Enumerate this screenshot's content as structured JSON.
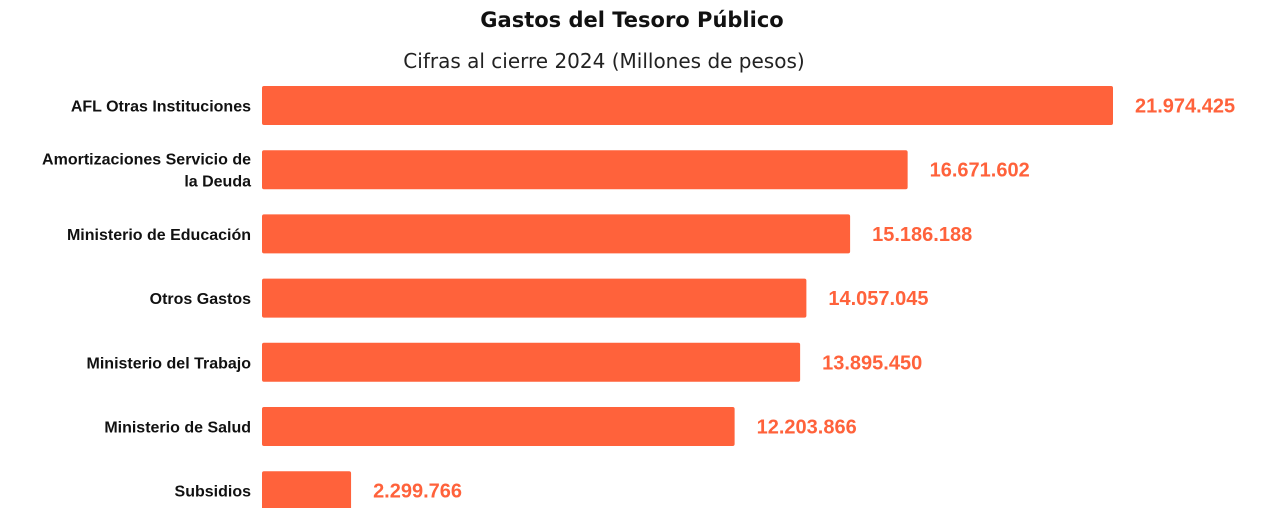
{
  "chart_data": {
    "type": "bar",
    "orientation": "horizontal",
    "title": "Gastos del Tesoro Público",
    "subtitle": "Cifras al cierre 2024 (Millones de pesos)",
    "categories": [
      "AFL Otras Instituciones",
      "Amortizaciones Servicio de la Deuda",
      "Ministerio de Educación",
      "Otros Gastos",
      "Ministerio del Trabajo",
      "Ministerio de Salud",
      "Subsidios"
    ],
    "category_lines": [
      [
        "AFL Otras Instituciones"
      ],
      [
        "Amortizaciones Servicio de",
        "la Deuda"
      ],
      [
        "Ministerio de Educación"
      ],
      [
        "Otros Gastos"
      ],
      [
        "Ministerio del Trabajo"
      ],
      [
        "Ministerio de Salud"
      ],
      [
        "Subsidios"
      ]
    ],
    "values": [
      21974425,
      16671602,
      15186188,
      14057045,
      13895450,
      12203866,
      2299766
    ],
    "value_labels": [
      "21.974.425",
      "16.671.602",
      "15.186.188",
      "14.057.045",
      "13.895.450",
      "12.203.866",
      "2.299.766"
    ],
    "xlim": [
      0,
      21974425
    ],
    "grid": false,
    "legend": "none",
    "bar_color": "#FF623B",
    "label_color": "#FF623B"
  }
}
